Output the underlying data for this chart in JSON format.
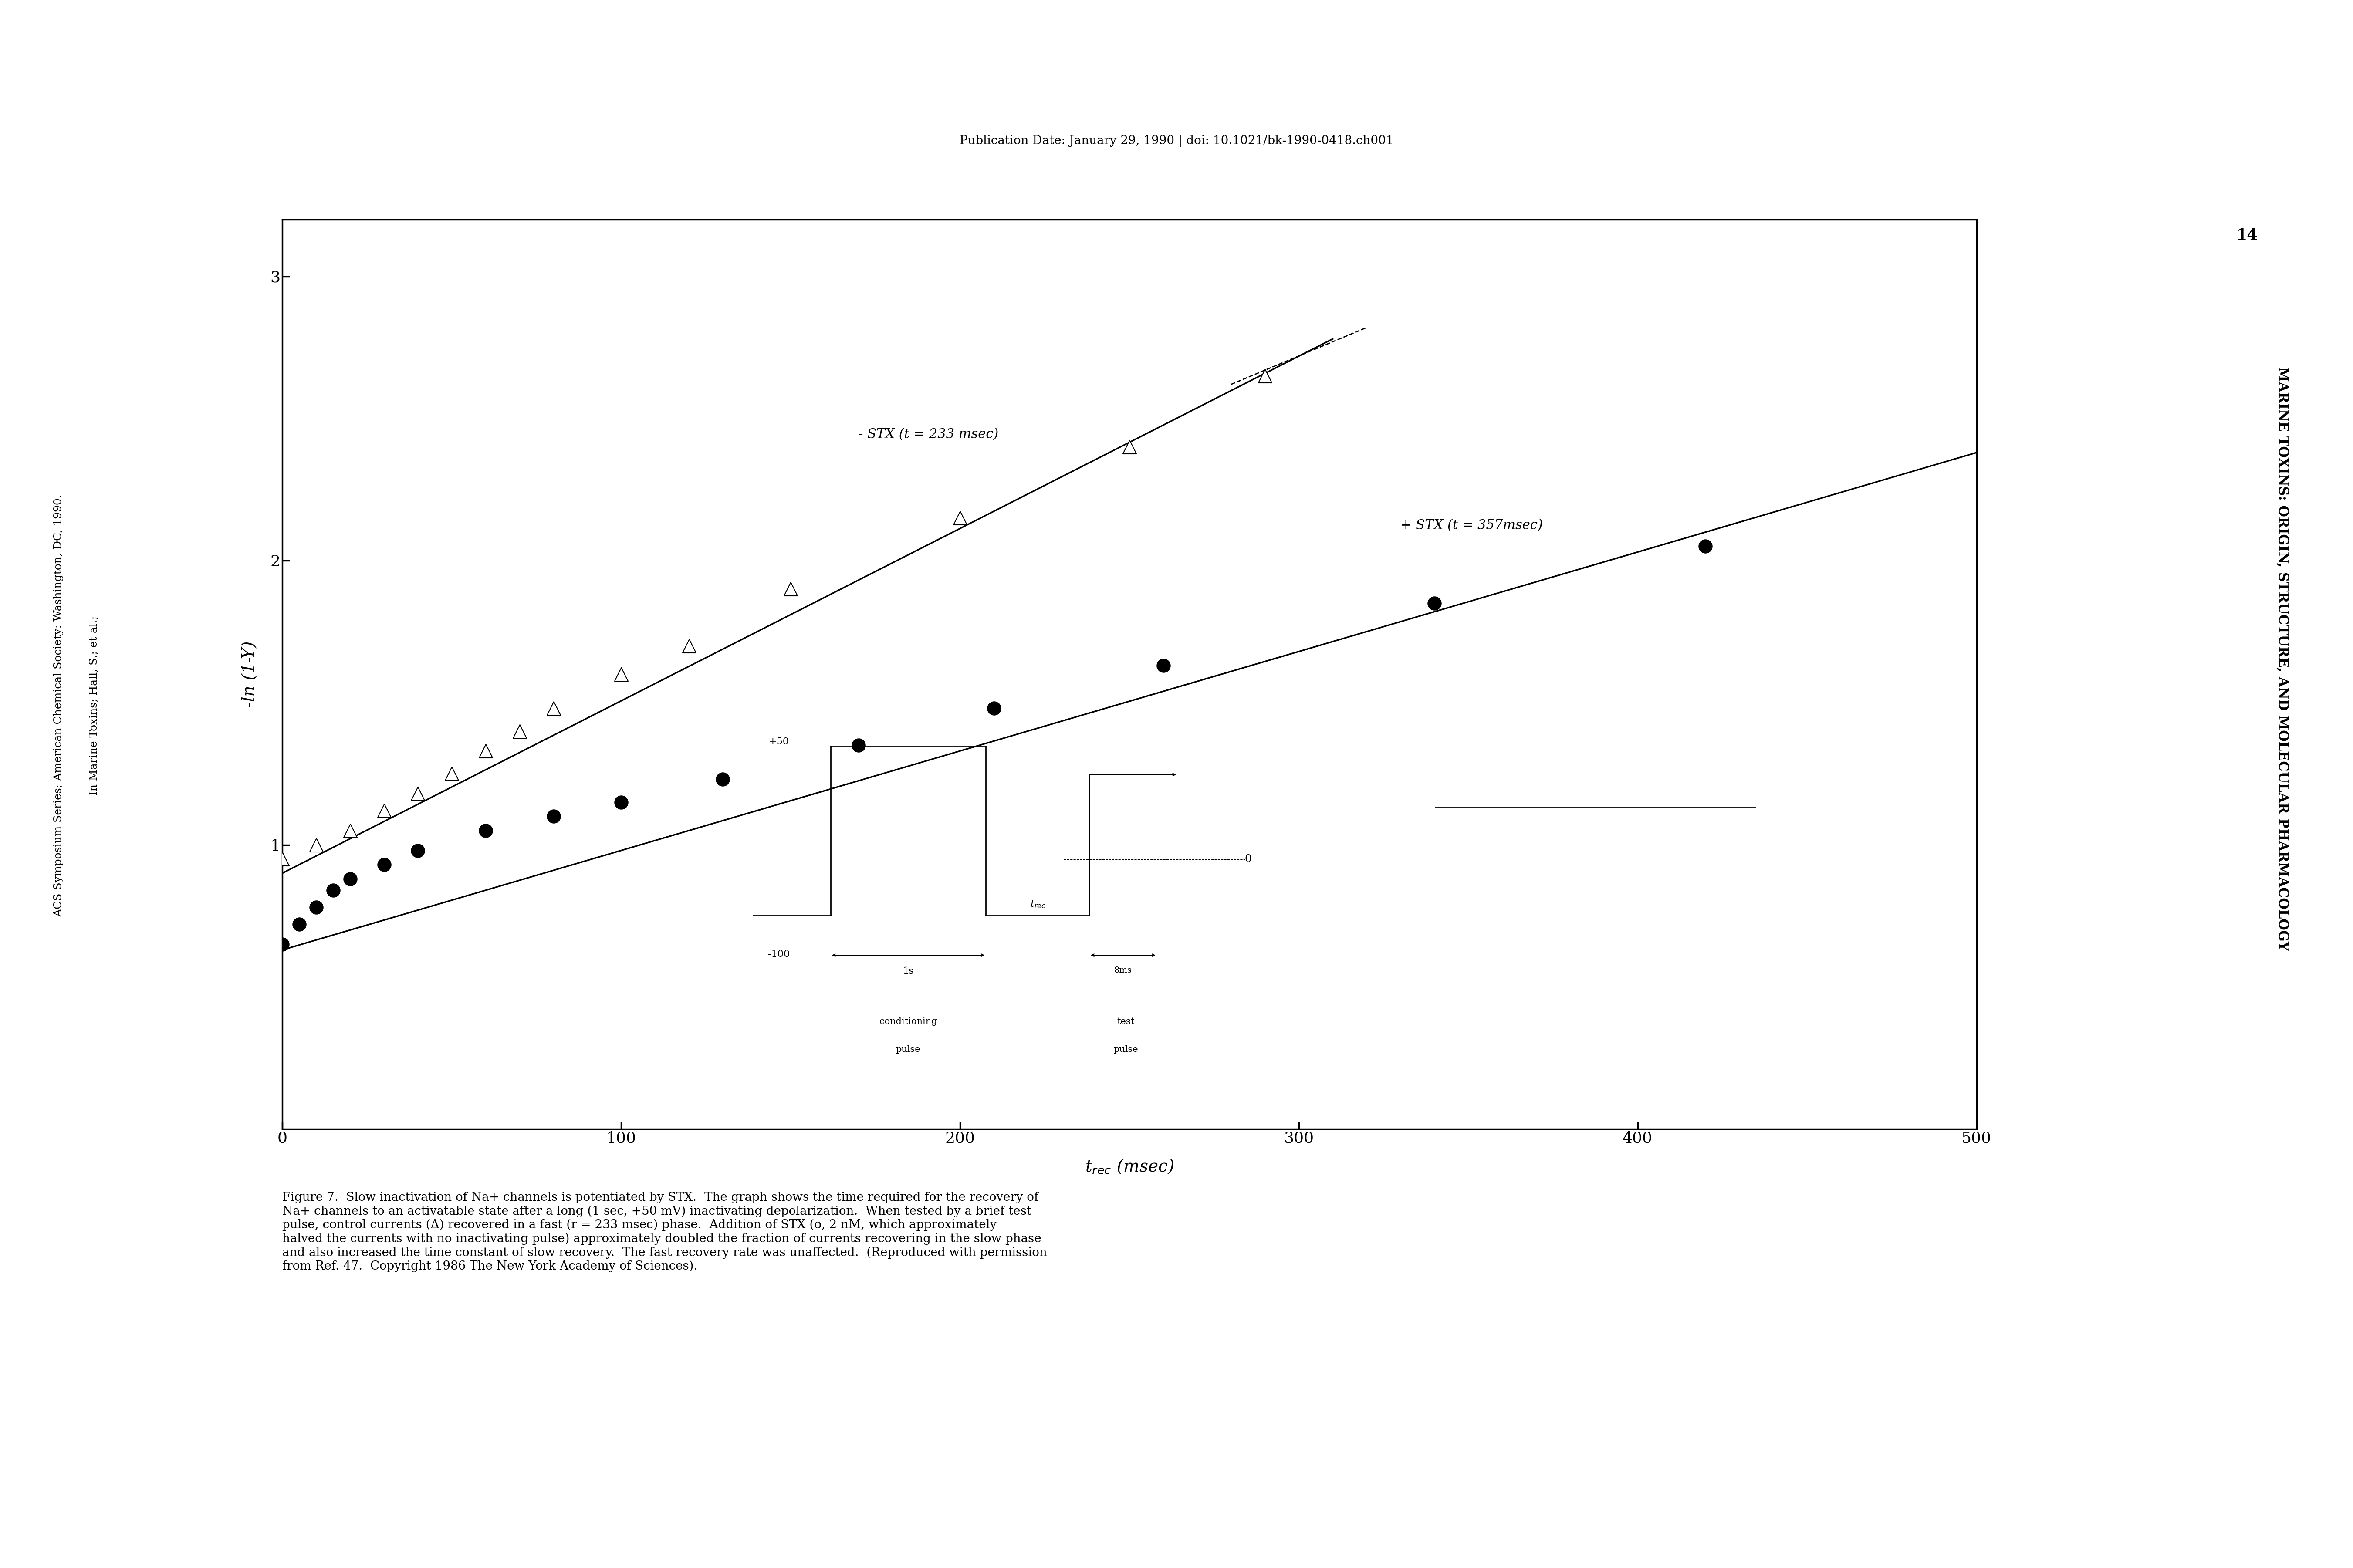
{
  "title_top": "Publication Date: January 29, 1990 | doi: 10.1021/bk-1990-0418.ch001",
  "xlabel": "t$_{rec}$ (msec)",
  "ylabel": "-ln (1-Y)",
  "xlim": [
    0,
    500
  ],
  "ylim": [
    0,
    3.2
  ],
  "xticks": [
    0,
    100,
    200,
    300,
    400,
    500
  ],
  "yticks": [
    1.0,
    2.0,
    3.0
  ],
  "no_stx_label": "- STX (t = 233 msec)",
  "stx_label": "+ STX (t = 357msec)",
  "no_stx_x": [
    0,
    10,
    20,
    30,
    40,
    50,
    60,
    70,
    80,
    100,
    120,
    150,
    200,
    250,
    290
  ],
  "no_stx_y": [
    0.95,
    1.0,
    1.05,
    1.12,
    1.18,
    1.25,
    1.33,
    1.4,
    1.48,
    1.6,
    1.7,
    1.9,
    2.15,
    2.4,
    2.65
  ],
  "no_stx_line_x": [
    0,
    310
  ],
  "no_stx_line_y": [
    0.9,
    2.78
  ],
  "stx_x": [
    0,
    5,
    10,
    15,
    20,
    30,
    40,
    60,
    80,
    100,
    130,
    170,
    210,
    260,
    340,
    420
  ],
  "stx_y": [
    0.65,
    0.72,
    0.78,
    0.84,
    0.88,
    0.93,
    0.98,
    1.05,
    1.1,
    1.15,
    1.23,
    1.35,
    1.48,
    1.63,
    1.85,
    2.05
  ],
  "stx_line_x": [
    0,
    500
  ],
  "stx_line_y": [
    0.63,
    2.38
  ],
  "page_number": "14",
  "right_side_text": "MARINE TOXINS: ORIGIN, STRUCTURE, AND MOLECULAR PHARMACOLOGY",
  "left_side_text_1": "ACS Symposium Series; American Chemical Society: Washington, DC, 1990.",
  "left_side_text_2": "In Marine Toxins; Hall, S.; et al.;",
  "caption": "Figure 7.  Slow inactivation of Na+ channels is potentiated by STX.  The graph shows the time required for the recovery of\nNa+ channels to an activatable state after a long (1 sec, +50 mV) inactivating depolarization.  When tested by a brief test\npulse, control currents (Δ) recovered in a fast (r = 233 msec) phase.  Addition of STX (o, 2 nM, which approximately\nhalved the currents with no inactivating pulse) approximately doubled the fraction of currents recovering in the slow phase\nand also increased the time constant of slow recovery.  The fast recovery rate was unaffected.  (Reproduced with permission\nfrom Ref. 47.  Copyright 1986 The New York Academy of Sciences).",
  "bg_color": "#ffffff"
}
